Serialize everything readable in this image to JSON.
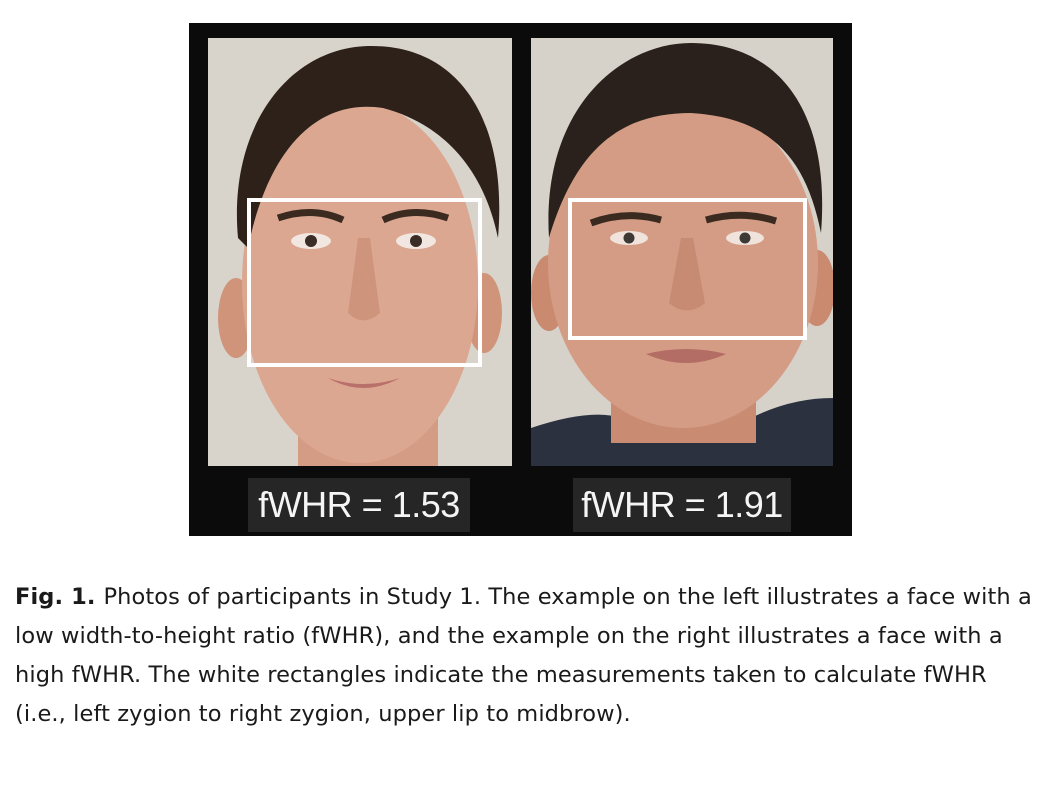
{
  "figure": {
    "left_photo": {
      "fwhr_label": "fWHR = 1.53"
    },
    "right_photo": {
      "fwhr_label": "fWHR = 1.91"
    }
  },
  "caption": {
    "label": "Fig. 1.",
    "text": "Photos of participants in Study 1. The example on the left illustrates a face with a low width-to-height ratio (fWHR), and the example on the right illustrates a face with a high fWHR. The white rectangles indicate the measurements taken to calculate fWHR (i.e., left zygion to right zygion, upper lip to midbrow)."
  },
  "colors": {
    "figure_background": "#0b0b0b",
    "label_background": "#262626",
    "label_text": "#f5f5f5",
    "measurement_rectangle": "#ffffff",
    "skin": "#d9a58c",
    "hair": "#2e2119"
  }
}
